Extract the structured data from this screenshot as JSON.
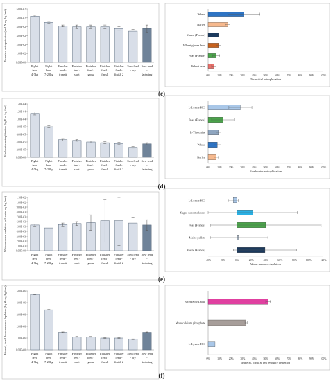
{
  "colors": {
    "left_bar": "#d8dee8",
    "left_bar_dark": "#6f8399",
    "blue": "#2e74c4",
    "peach": "#f6b98e",
    "navy": "#1c3a5e",
    "orange": "#c8621e",
    "green": "#4aa64a",
    "red": "#e8706a",
    "lightblue": "#a9c7e8",
    "slate": "#8fa6c0",
    "cyan": "#2ab0e4",
    "gray": "#9da7b3",
    "magenta": "#e040a0",
    "taupe": "#a79e9a"
  },
  "chart_data": [
    {
      "id": "a",
      "type": "bar",
      "ylabel": "Terrestrial eutrophication (mol·N eq./kg feed)",
      "categories": [
        "Piglet feed 4-7kg",
        "Piglet feed 7-20kg",
        "Finisher feed - transit",
        "Finisher feed - start",
        "Finisher feed - grow",
        "Finisher feed - finish",
        "Finisher feed - finish 2",
        "Sow feed - dry",
        "Sow feed - lactating"
      ],
      "values": [
        0.052,
        0.045,
        0.041,
        0.04,
        0.04,
        0.04,
        0.038,
        0.035,
        0.038
      ],
      "errors": [
        0.001,
        0.001,
        0.001,
        0.002,
        0.002,
        0.002,
        0.002,
        0.002,
        0.004
      ],
      "yticks": [
        "0.00E+00",
        "1.00E-02",
        "2.00E-02",
        "3.00E-02",
        "4.00E-02",
        "5.00E-02",
        "6.00E-02"
      ],
      "ylim": [
        0,
        0.06
      ]
    },
    {
      "id": "c",
      "type": "bar",
      "orientation": "horizontal",
      "panel_label": "(c)",
      "xlabel": "Terrestrial eutrophication",
      "categories": [
        "Wheat",
        "Barley",
        "Maize (France)",
        "Wheat gluten feed",
        "Peas (France)",
        "Wheat bran"
      ],
      "values": [
        0.31,
        0.17,
        0.09,
        0.09,
        0.07,
        0.05
      ],
      "errors": [
        0.14,
        0.02,
        0.04,
        0.02,
        0.03,
        0.02
      ],
      "colors": [
        "blue",
        "peach",
        "navy",
        "orange",
        "green",
        "red"
      ],
      "xticks": [
        "0%",
        "10%",
        "20%",
        "30%",
        "40%",
        "50%",
        "60%",
        "70%",
        "80%",
        "90%",
        "100%"
      ],
      "xlim": [
        0,
        1
      ]
    },
    {
      "id": "b",
      "type": "bar",
      "ylabel": "Freshwater eutrophication (kg P eq./kg feed)",
      "categories": [
        "Piglet feed 4-7kg",
        "Piglet feed 7-20kg",
        "Finisher feed - transit",
        "Finisher feed - start",
        "Finisher feed - grow",
        "Finisher feed - finish",
        "Finisher feed - finish 2",
        "Sow feed - dry",
        "Sow feed - lactating"
      ],
      "values": [
        0.000115,
        8e-05,
        4.6e-05,
        4.4e-05,
        4e-05,
        3.8e-05,
        3.6e-05,
        2.6e-05,
        3.5e-05
      ],
      "errors": [
        4e-06,
        3e-06,
        3e-06,
        2e-06,
        3e-06,
        3e-06,
        3e-06,
        2e-06,
        3e-06
      ],
      "yticks": [
        "0.00E+00",
        "2.00E-05",
        "4.00E-05",
        "6.00E-05",
        "8.00E-05",
        "1.00E-04",
        "1.20E-04",
        "1.40E-04"
      ],
      "ylim": [
        0,
        0.00014
      ]
    },
    {
      "id": "d",
      "type": "bar",
      "orientation": "horizontal",
      "panel_label": "(d)",
      "xlabel": "Freshwater eutrophication",
      "categories": [
        "L-Lysine HCl",
        "Peas (France)",
        "L-Threonine",
        "Wheat",
        "Barley"
      ],
      "values": [
        0.28,
        0.13,
        0.09,
        0.08,
        0.07
      ],
      "errors": [
        0.1,
        0.1,
        0.02,
        0.03,
        0.02
      ],
      "colors": [
        "lightblue",
        "green",
        "slate",
        "blue",
        "peach"
      ],
      "xticks": [
        "0%",
        "10%",
        "20%",
        "30%",
        "40%",
        "50%",
        "60%",
        "70%",
        "80%",
        "90%",
        "100%"
      ],
      "xlim": [
        0,
        1
      ]
    },
    {
      "id": "e_left",
      "type": "bar",
      "ylabel": "Water resource depletion (m3 water eq./kg feed)",
      "categories": [
        "Piglet feed 4-7kg",
        "Piglet feed 7-20kg",
        "Finisher feed - transit",
        "Finisher feed - start",
        "Finisher feed - grow",
        "Finisher feed - finish",
        "Finisher feed - finish 2",
        "Sow feed - dry",
        "Sow feed - lactating"
      ],
      "values": [
        0.0053,
        0.0047,
        0.0054,
        0.0056,
        0.0058,
        0.0062,
        0.0062,
        0.0057,
        0.0053
      ],
      "errors": [
        0.0002,
        0.0002,
        0.0003,
        0.0004,
        0.0016,
        0.0044,
        0.0051,
        0.0012,
        0.0011
      ],
      "yticks": [
        "0.00E+00",
        "1.00E-03",
        "2.00E-03",
        "3.00E-03",
        "4.00E-03",
        "5.00E-03",
        "6.00E-03",
        "7.00E-03",
        "8.00E-03",
        "9.00E-03",
        "1.00E-02",
        "1.10E-02"
      ],
      "ylim": [
        0,
        0.011
      ]
    },
    {
      "id": "e",
      "type": "bar",
      "orientation": "horizontal",
      "panel_label": "(e)",
      "xlabel": "Water resource depletion",
      "categories": [
        "L-Lysine HCl",
        "Sugar cane molasses",
        "Peas (France)",
        "Maize pellets",
        "Maize (France)"
      ],
      "values": [
        -0.05,
        0.22,
        0.4,
        0.03,
        0.39
      ],
      "errors": [
        0.07,
        0.62,
        0.77,
        0.4,
        0.44
      ],
      "colors": [
        "lightblue",
        "cyan",
        "green",
        "gray",
        "navy"
      ],
      "xticks": [
        "-40%",
        "-20%",
        "0%",
        "20%",
        "40%",
        "60%",
        "80%",
        "100%",
        "120%"
      ],
      "xlim": [
        -0.4,
        1.2
      ]
    },
    {
      "id": "f_left",
      "type": "bar",
      "ylabel": "Mineral, fossil & ren resource depletion (kg Sb eq./kg feed)",
      "categories": [
        "Piglet feed 4-7kg",
        "Piglet feed 7-20kg",
        "Finisher feed - transit",
        "Finisher feed - start",
        "Finisher feed - grow",
        "Finisher feed - finish",
        "Finisher feed - finish 2",
        "Sow feed - dry",
        "Sow feed - lactating"
      ],
      "values": [
        4.7e-06,
        3.4e-06,
        1.5e-06,
        1.1e-06,
        1.1e-06,
        1e-06,
        1e-06,
        9e-07,
        1.5e-06
      ],
      "errors": [
        3e-08,
        3e-08,
        3e-08,
        3e-08,
        3e-08,
        3e-08,
        3e-08,
        3e-08,
        3e-08
      ],
      "yticks": [
        "0.00E+00",
        "1.00E-06",
        "2.00E-06",
        "3.00E-06",
        "4.00E-06",
        "5.00E-06"
      ],
      "ylim": [
        0,
        5e-06
      ]
    },
    {
      "id": "f",
      "type": "bar",
      "orientation": "horizontal",
      "panel_label": "(f)",
      "xlabel": "Mineral, fossil & ren resource depletion",
      "categories": [
        "BrightSow Lacto",
        "Monocalcium phosphate",
        "L-Lysine HCl"
      ],
      "values": [
        0.52,
        0.33,
        0.06
      ],
      "errors": [
        0.02,
        0.01,
        0.01
      ],
      "colors": [
        "magenta",
        "taupe",
        "lightblue"
      ],
      "xticks": [
        "0%",
        "10%",
        "20%",
        "30%",
        "40%",
        "50%",
        "60%",
        "70%",
        "80%",
        "90%",
        "100%"
      ],
      "xlim": [
        0,
        1
      ]
    }
  ]
}
